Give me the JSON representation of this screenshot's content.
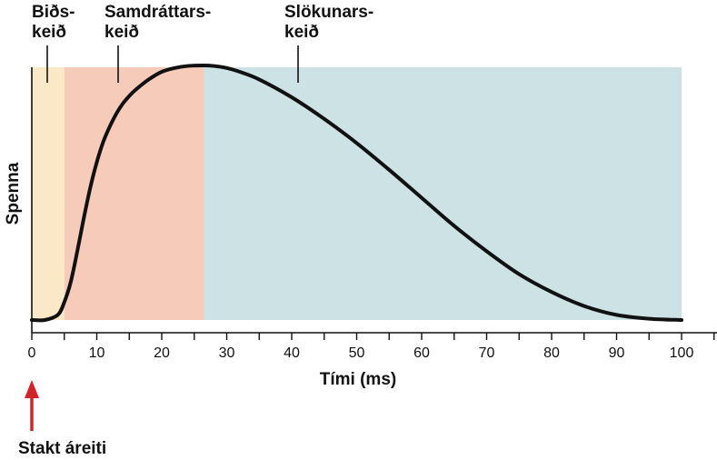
{
  "chart_data": {
    "type": "line",
    "xlabel": "Tími (ms)",
    "ylabel": "Spenna",
    "xlim": [
      0,
      100
    ],
    "ylim": [
      0,
      1
    ],
    "x_ticks": [
      "0",
      "10",
      "20",
      "30",
      "40",
      "50",
      "60",
      "70",
      "80",
      "90",
      "100"
    ],
    "x_minor_step": 5,
    "grid": false,
    "phases": [
      {
        "label_line1": "Biðs-",
        "label_line2": "keið",
        "start": 0,
        "end": 5,
        "color": "#fbe8c6"
      },
      {
        "label_line1": "Samdráttars-",
        "label_line2": "keið",
        "start": 5,
        "end": 26.5,
        "color": "#f6cbb9"
      },
      {
        "label_line1": "Slökunars-",
        "label_line2": "keið",
        "start": 26.5,
        "end": 100,
        "color": "#cde2e4"
      }
    ],
    "series": [
      {
        "x": [
          0,
          2,
          4,
          5,
          6,
          7,
          8,
          9,
          10,
          11,
          12,
          13,
          14,
          15,
          16,
          18,
          20,
          22,
          24,
          26.5,
          28,
          30,
          32,
          35,
          40,
          45,
          50,
          55,
          60,
          65,
          70,
          75,
          80,
          85,
          90,
          95,
          100
        ],
        "y": [
          0.0,
          0.0,
          0.02,
          0.07,
          0.15,
          0.27,
          0.4,
          0.52,
          0.62,
          0.7,
          0.76,
          0.81,
          0.85,
          0.88,
          0.905,
          0.945,
          0.975,
          0.99,
          0.998,
          1.0,
          0.998,
          0.99,
          0.975,
          0.945,
          0.875,
          0.79,
          0.695,
          0.59,
          0.48,
          0.37,
          0.27,
          0.18,
          0.11,
          0.055,
          0.02,
          0.005,
          0.0
        ],
        "color": "#111111"
      }
    ],
    "annotation": {
      "label": "Stakt áreiti",
      "x": 0,
      "color": "#d2232a"
    }
  }
}
